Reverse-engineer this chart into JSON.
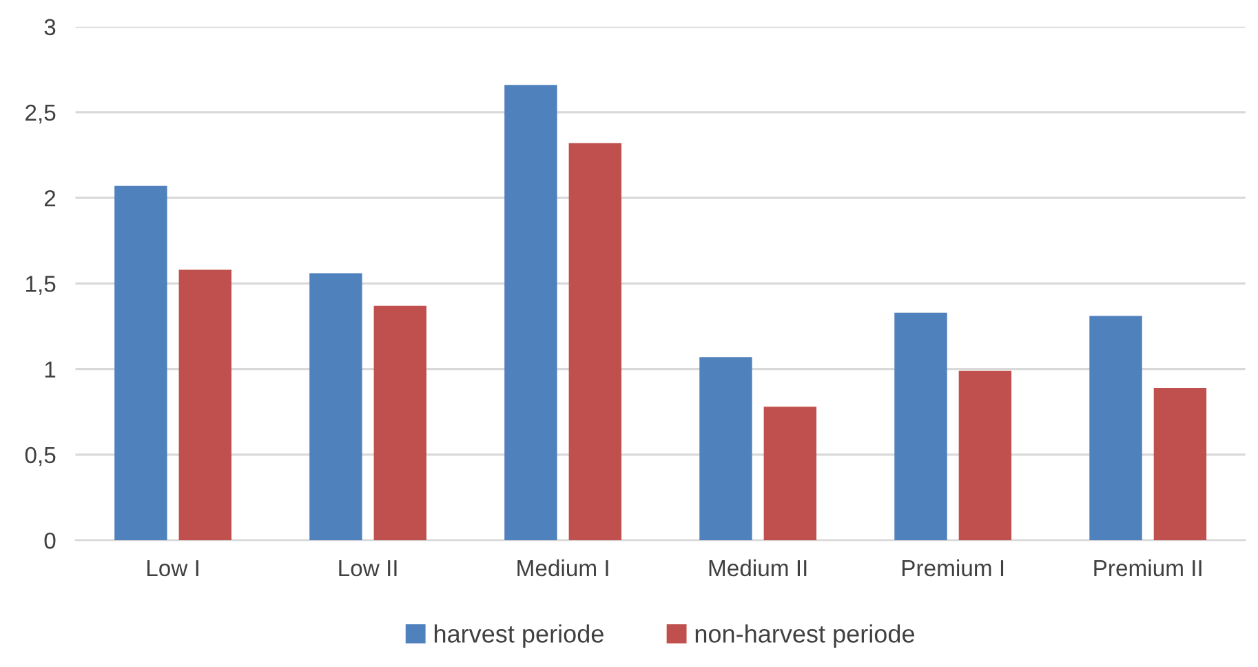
{
  "chart_data": {
    "type": "bar",
    "categories": [
      "Low I",
      "Low II",
      "Medium I",
      "Medium II",
      "Premium I",
      "Premium II"
    ],
    "series": [
      {
        "name": "harvest periode",
        "color": "#4f81bd",
        "values": [
          2.07,
          1.56,
          2.66,
          1.07,
          1.33,
          1.31
        ]
      },
      {
        "name": "non-harvest periode",
        "color": "#c0504d",
        "values": [
          1.58,
          1.37,
          2.32,
          0.78,
          0.99,
          0.89
        ]
      }
    ],
    "ylim": [
      0,
      3
    ],
    "yticks": [
      0,
      {
        "value": 0.5,
        "label": "0,5"
      },
      1,
      {
        "value": 1.5,
        "label": "1,5"
      },
      2,
      {
        "value": 2.5,
        "label": "2,5"
      },
      3
    ],
    "grid": "y",
    "legend": "bottom"
  }
}
